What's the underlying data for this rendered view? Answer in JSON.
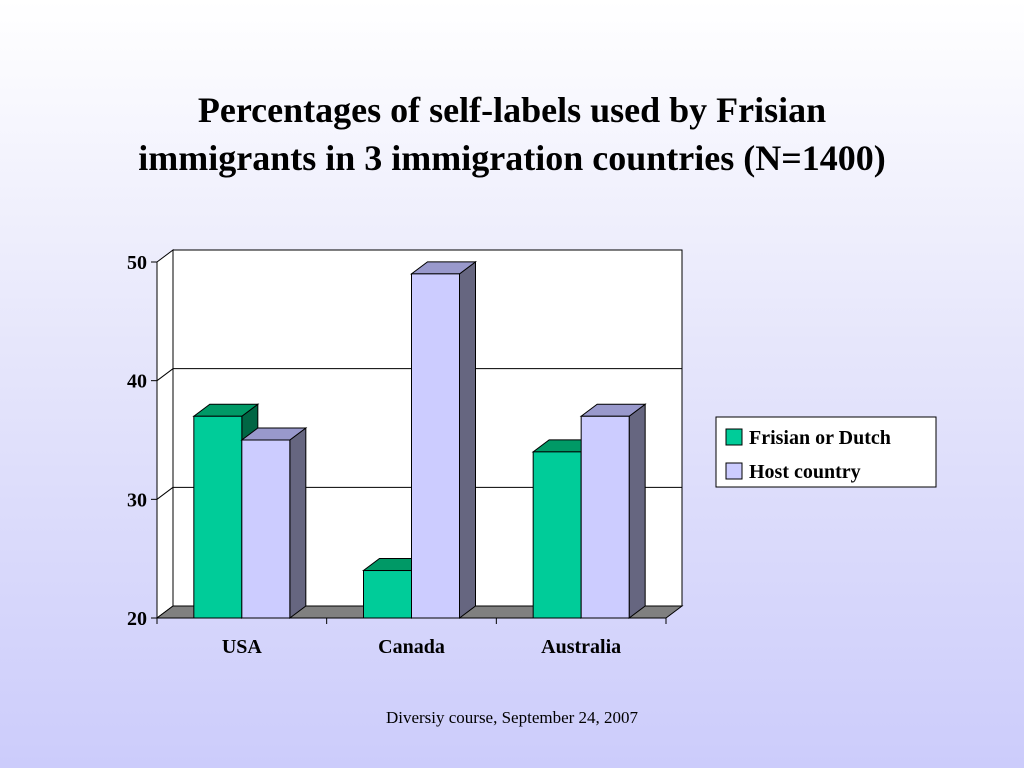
{
  "slide": {
    "title_line1": "Percentages of self-labels used by Frisian",
    "title_line2": "immigrants in 3 immigration countries (N=1400)",
    "footer": "Diversiy course, September 24, 2007"
  },
  "colors": {
    "frisian_front": "#00cc99",
    "frisian_top": "#009966",
    "frisian_side": "#006644",
    "host_front": "#ccccff",
    "host_top": "#9999cc",
    "host_side": "#666680",
    "floor": "#808080",
    "gridline": "#000000"
  },
  "chart_data": {
    "type": "bar",
    "categories": [
      "USA",
      "Canada",
      "Australia"
    ],
    "series": [
      {
        "name": "Frisian or Dutch",
        "values": [
          37,
          24,
          34
        ]
      },
      {
        "name": "Host country",
        "values": [
          35,
          49,
          37
        ]
      }
    ],
    "ylim": [
      20,
      50
    ],
    "yticks": [
      "20",
      "30",
      "40",
      "50"
    ],
    "grid": true,
    "legend_position": "right",
    "three_d": true
  }
}
